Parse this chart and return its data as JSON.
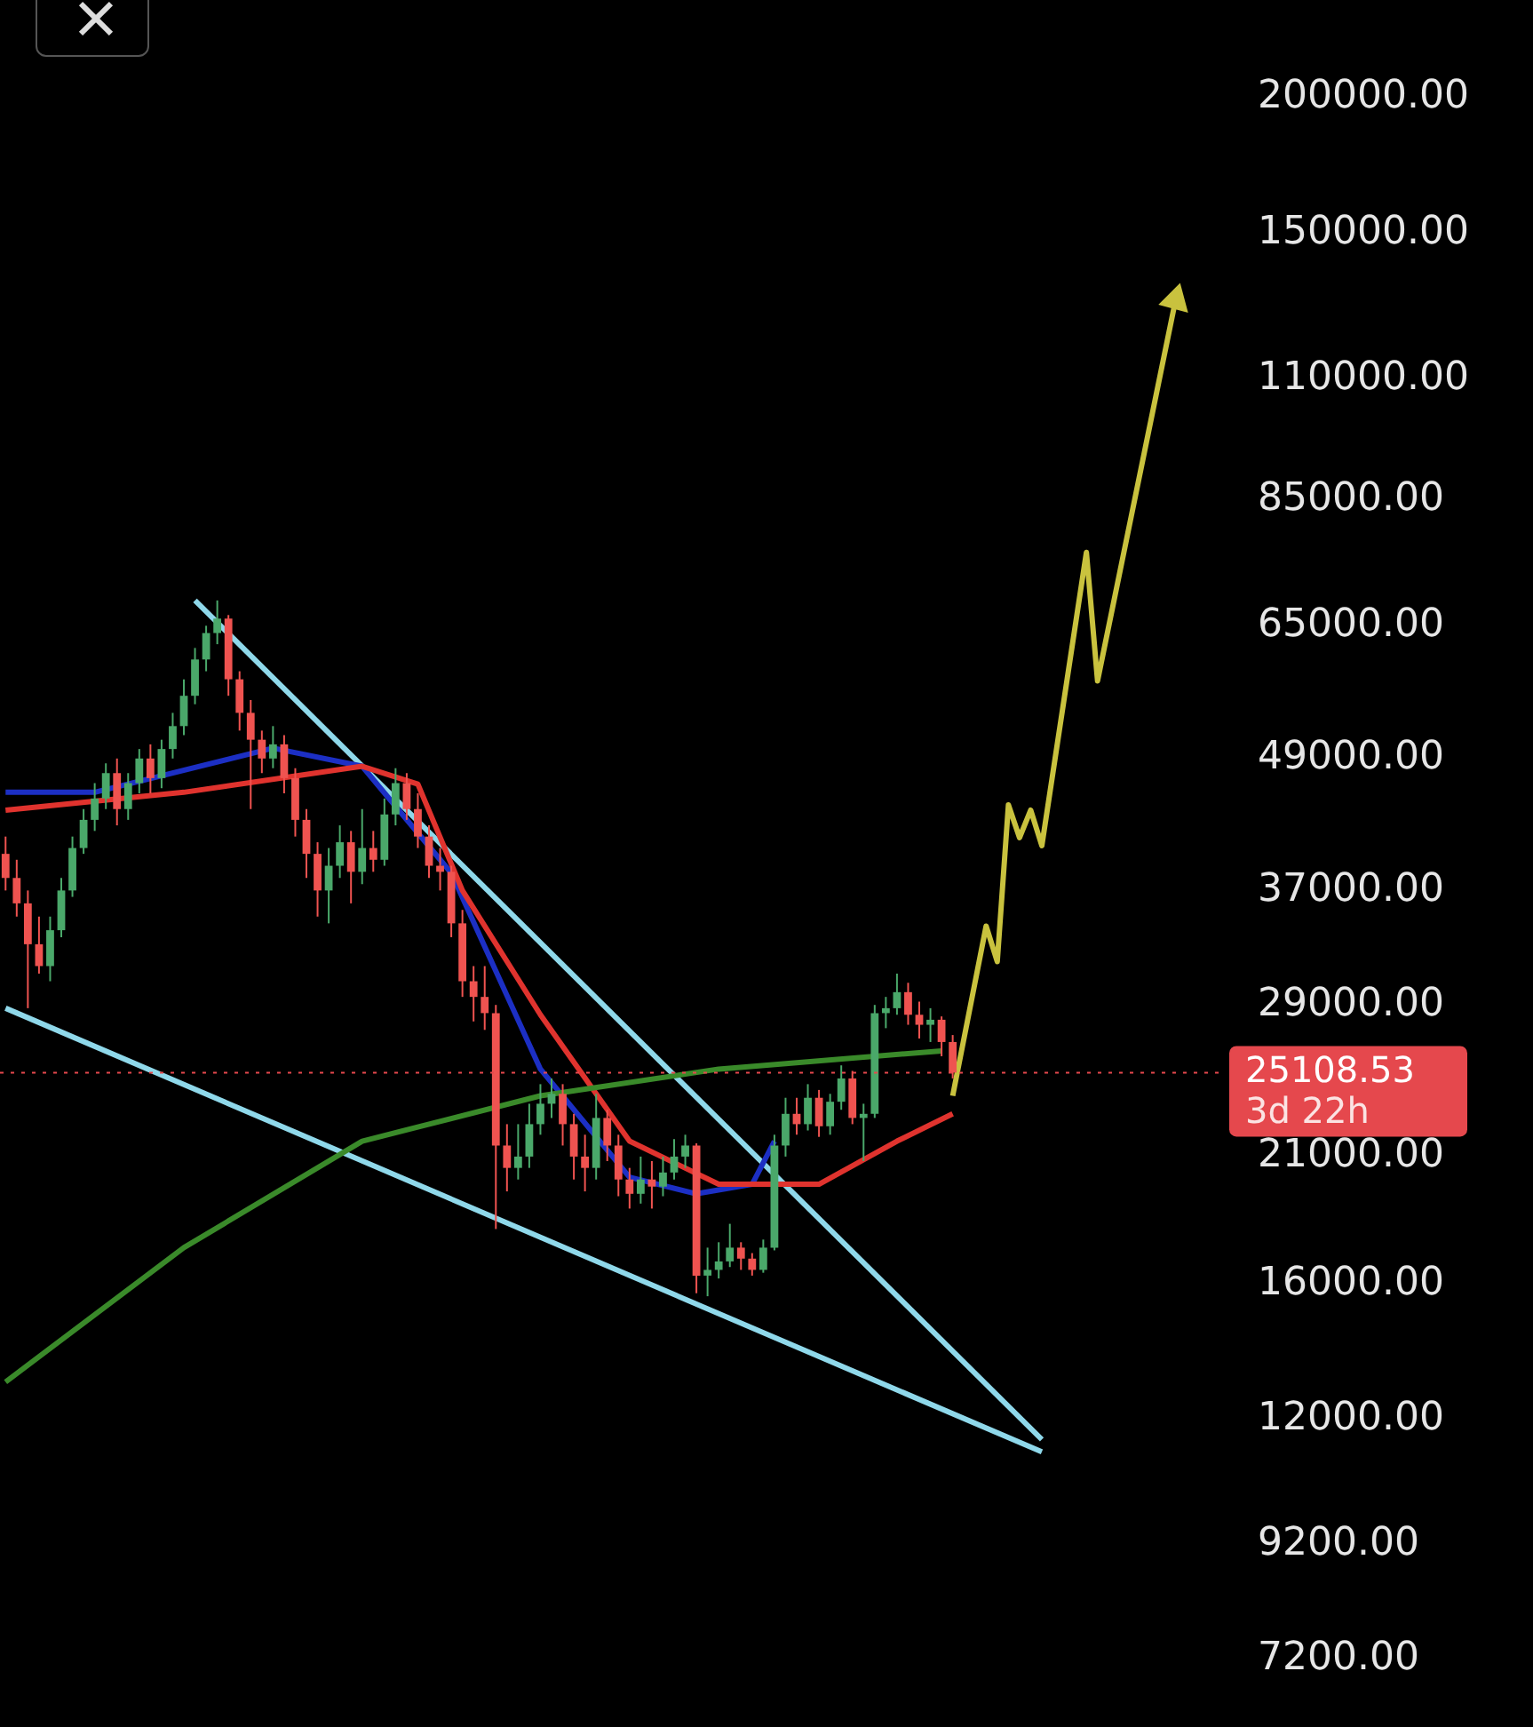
{
  "chart_data": {
    "type": "candlestick",
    "categories": [
      null,
      null,
      null,
      null,
      null,
      null,
      null,
      null,
      null,
      null,
      null,
      null,
      null,
      null,
      null,
      null,
      null,
      null,
      null,
      null,
      null,
      null,
      null,
      null,
      null,
      null,
      null,
      null,
      null,
      null,
      null,
      null,
      null,
      null,
      null,
      null,
      null,
      null,
      null,
      null,
      null,
      null,
      null,
      null,
      null,
      null,
      null,
      null,
      null,
      null,
      null,
      null,
      null,
      null,
      null,
      null,
      null,
      null,
      null,
      null,
      null,
      null,
      null,
      null,
      null,
      null,
      null,
      null,
      null,
      null,
      null,
      null,
      null,
      null,
      null,
      null,
      null,
      null,
      null,
      null,
      null,
      null,
      null,
      null,
      null,
      null,
      null,
      null,
      null,
      null,
      null,
      null,
      null,
      null,
      null,
      null,
      null,
      null,
      null,
      null,
      null,
      null,
      null,
      null,
      null,
      null,
      null,
      null,
      null,
      null
    ],
    "ohlc": [
      [
        40000,
        41500,
        37000,
        38000
      ],
      [
        38000,
        39500,
        35000,
        36000
      ],
      [
        36000,
        37000,
        28800,
        33000
      ],
      [
        33000,
        35000,
        31000,
        31500
      ],
      [
        31500,
        35000,
        30500,
        34000
      ],
      [
        34000,
        38000,
        33500,
        37000
      ],
      [
        37000,
        41500,
        36500,
        40500
      ],
      [
        40500,
        44000,
        40000,
        43000
      ],
      [
        43000,
        46500,
        42000,
        45000
      ],
      [
        45000,
        48500,
        44000,
        47500
      ],
      [
        47500,
        49000,
        42500,
        44000
      ],
      [
        44000,
        47500,
        43000,
        46500
      ],
      [
        46500,
        50000,
        45500,
        49000
      ],
      [
        49000,
        50500,
        45500,
        47000
      ],
      [
        47000,
        51000,
        46000,
        50000
      ],
      [
        50000,
        54000,
        49000,
        52500
      ],
      [
        52500,
        58000,
        51500,
        56000
      ],
      [
        56000,
        62000,
        55000,
        60500
      ],
      [
        60500,
        65000,
        59000,
        64000
      ],
      [
        64000,
        68600,
        62500,
        66000
      ],
      [
        66000,
        66500,
        56000,
        58000
      ],
      [
        58000,
        59000,
        52000,
        54000
      ],
      [
        54000,
        55500,
        44000,
        51000
      ],
      [
        51000,
        52000,
        47500,
        49000
      ],
      [
        49000,
        52500,
        48000,
        50500
      ],
      [
        50500,
        51500,
        45500,
        47000
      ],
      [
        47000,
        48000,
        41500,
        43000
      ],
      [
        43000,
        44000,
        38000,
        40000
      ],
      [
        40000,
        41000,
        35000,
        37000
      ],
      [
        37000,
        40500,
        34500,
        39000
      ],
      [
        39000,
        42500,
        38000,
        41000
      ],
      [
        41000,
        42000,
        36000,
        38500
      ],
      [
        38500,
        44000,
        37500,
        40500
      ],
      [
        40500,
        42000,
        38500,
        39500
      ],
      [
        39500,
        45000,
        39000,
        43500
      ],
      [
        43500,
        48000,
        42500,
        46500
      ],
      [
        46500,
        47500,
        43000,
        44000
      ],
      [
        44000,
        45500,
        40500,
        41500
      ],
      [
        41500,
        42500,
        38000,
        39000
      ],
      [
        39000,
        40500,
        37000,
        38500
      ],
      [
        38500,
        39000,
        33500,
        34500
      ],
      [
        34500,
        35500,
        29500,
        30500
      ],
      [
        30500,
        31500,
        28000,
        29500
      ],
      [
        29500,
        31500,
        27500,
        28500
      ],
      [
        28500,
        29000,
        18000,
        21500
      ],
      [
        21500,
        22500,
        19500,
        20500
      ],
      [
        20500,
        22500,
        20000,
        21000
      ],
      [
        21000,
        23500,
        20500,
        22500
      ],
      [
        22500,
        24500,
        22000,
        23500
      ],
      [
        23500,
        24800,
        22800,
        24000
      ],
      [
        24000,
        24500,
        21500,
        22500
      ],
      [
        22500,
        23000,
        20000,
        21000
      ],
      [
        21000,
        22000,
        19500,
        20500
      ],
      [
        20500,
        24000,
        20000,
        22800
      ],
      [
        22800,
        23200,
        20800,
        21500
      ],
      [
        21500,
        22000,
        19300,
        20000
      ],
      [
        20000,
        20500,
        18800,
        19400
      ],
      [
        19400,
        21000,
        19000,
        20000
      ],
      [
        20000,
        20800,
        18800,
        19700
      ],
      [
        19700,
        21000,
        19300,
        20300
      ],
      [
        20300,
        21800,
        20000,
        21000
      ],
      [
        21000,
        22000,
        20500,
        21500
      ],
      [
        21500,
        21600,
        15700,
        16300
      ],
      [
        16300,
        17300,
        15600,
        16500
      ],
      [
        16500,
        17500,
        16200,
        16800
      ],
      [
        16800,
        18200,
        16600,
        17300
      ],
      [
        17300,
        17500,
        16500,
        16900
      ],
      [
        16900,
        17100,
        16300,
        16500
      ],
      [
        16500,
        17600,
        16400,
        17300
      ],
      [
        17300,
        22000,
        17200,
        21500
      ],
      [
        21500,
        23800,
        21000,
        23000
      ],
      [
        23000,
        23800,
        22000,
        22500
      ],
      [
        22500,
        24500,
        22200,
        23800
      ],
      [
        23800,
        24200,
        21900,
        22400
      ],
      [
        22400,
        24000,
        22000,
        23600
      ],
      [
        23600,
        25500,
        23200,
        24800
      ],
      [
        24800,
        25200,
        22500,
        22800
      ],
      [
        22800,
        23500,
        20800,
        23000
      ],
      [
        23000,
        29000,
        22800,
        28500
      ],
      [
        28500,
        29500,
        27600,
        28800
      ],
      [
        28800,
        31000,
        28400,
        29800
      ],
      [
        29800,
        30400,
        27800,
        28400
      ],
      [
        28400,
        29200,
        27000,
        27800
      ],
      [
        27800,
        28800,
        26800,
        28100
      ],
      [
        28100,
        28300,
        26000,
        26800
      ],
      [
        26800,
        27200,
        24800,
        25108.53
      ],
      null,
      null,
      null,
      null,
      null,
      null,
      null,
      null,
      null,
      null,
      null,
      null,
      null,
      null,
      null,
      null,
      null,
      null,
      null,
      null,
      null,
      null,
      null,
      null
    ],
    "series": [
      {
        "type": "line",
        "color": "#3a8a2a",
        "values": [
          13000,
          null,
          null,
          null,
          null,
          null,
          null,
          null,
          null,
          null,
          null,
          null,
          null,
          null,
          null,
          null,
          17300,
          null,
          null,
          null,
          null,
          null,
          null,
          null,
          null,
          null,
          null,
          null,
          null,
          null,
          null,
          null,
          21700,
          null,
          null,
          null,
          null,
          null,
          null,
          null,
          null,
          null,
          null,
          null,
          null,
          null,
          null,
          null,
          23900,
          null,
          null,
          null,
          null,
          null,
          null,
          null,
          null,
          null,
          null,
          null,
          null,
          null,
          null,
          null,
          25300,
          null,
          null,
          null,
          null,
          null,
          null,
          null,
          null,
          null,
          null,
          null,
          null,
          null,
          null,
          null,
          null,
          null,
          null,
          null,
          26300,
          null,
          null,
          null,
          null,
          null,
          null,
          null,
          null,
          null,
          null,
          null,
          null,
          null,
          null,
          null,
          null,
          null,
          null,
          null,
          null,
          null,
          null,
          null,
          null,
          null
        ]
      },
      {
        "type": "line",
        "color": "#e0332e",
        "values": [
          43900,
          null,
          null,
          null,
          null,
          null,
          null,
          null,
          null,
          null,
          null,
          null,
          null,
          null,
          null,
          null,
          45600,
          null,
          null,
          null,
          null,
          null,
          null,
          null,
          null,
          null,
          null,
          null,
          null,
          null,
          null,
          null,
          48200,
          null,
          null,
          null,
          null,
          46400,
          null,
          null,
          null,
          37000,
          null,
          null,
          null,
          null,
          null,
          null,
          28400,
          null,
          null,
          null,
          null,
          null,
          null,
          null,
          21700,
          null,
          null,
          null,
          null,
          null,
          null,
          null,
          19800,
          null,
          null,
          null,
          null,
          null,
          null,
          null,
          null,
          19800,
          null,
          null,
          null,
          null,
          null,
          null,
          21700,
          null,
          null,
          null,
          null,
          23000,
          null,
          null,
          null,
          null,
          null,
          null,
          null,
          null,
          null,
          null,
          null,
          null,
          null,
          null,
          null,
          null,
          null,
          null,
          null,
          null,
          null,
          null,
          null,
          null
        ]
      },
      {
        "type": "line",
        "color": "#1c2fc4",
        "values": [
          45600,
          null,
          null,
          null,
          null,
          null,
          null,
          null,
          45600,
          null,
          null,
          null,
          null,
          null,
          null,
          null,
          null,
          null,
          null,
          null,
          null,
          null,
          null,
          null,
          50100,
          null,
          null,
          null,
          null,
          null,
          null,
          null,
          48200,
          null,
          null,
          null,
          null,
          null,
          null,
          null,
          38400,
          null,
          null,
          null,
          null,
          null,
          null,
          null,
          25300,
          null,
          null,
          null,
          null,
          null,
          null,
          null,
          20100,
          null,
          null,
          null,
          null,
          null,
          19400,
          null,
          null,
          null,
          null,
          19800,
          null,
          21700,
          null,
          null,
          null,
          null,
          null,
          null,
          null,
          null,
          null,
          null,
          null,
          null,
          null,
          null,
          null,
          null,
          null,
          null,
          null,
          null,
          null,
          null,
          null,
          null,
          null,
          null,
          null,
          null,
          null,
          null,
          null,
          null,
          null,
          null,
          null,
          null,
          null,
          null,
          null,
          null
        ]
      },
      {
        "type": "line",
        "color": "#8fd8ea",
        "values": [
          null,
          null,
          null,
          null,
          null,
          null,
          null,
          null,
          null,
          null,
          null,
          null,
          null,
          null,
          null,
          null,
          null,
          68600,
          null,
          null,
          null,
          null,
          null,
          null,
          null,
          null,
          null,
          null,
          null,
          null,
          null,
          null,
          null,
          null,
          null,
          null,
          null,
          null,
          null,
          null,
          null,
          null,
          null,
          null,
          null,
          null,
          null,
          null,
          null,
          null,
          null,
          null,
          null,
          null,
          null,
          null,
          null,
          null,
          null,
          null,
          null,
          null,
          null,
          null,
          null,
          null,
          null,
          null,
          null,
          null,
          null,
          null,
          null,
          null,
          null,
          null,
          null,
          null,
          null,
          null,
          null,
          null,
          null,
          null,
          null,
          null,
          null,
          null,
          null,
          null,
          null,
          null,
          null,
          11500,
          null,
          null,
          null,
          null,
          null,
          null,
          null,
          null,
          null,
          null,
          null,
          null,
          null,
          null,
          null,
          null
        ]
      },
      {
        "type": "line",
        "color": "#c9c23e",
        "values": [
          null,
          null,
          null,
          null,
          null,
          null,
          null,
          null,
          null,
          null,
          null,
          null,
          null,
          null,
          null,
          null,
          null,
          null,
          null,
          null,
          null,
          null,
          null,
          null,
          null,
          null,
          null,
          null,
          null,
          null,
          null,
          null,
          null,
          null,
          null,
          null,
          null,
          null,
          null,
          null,
          null,
          null,
          null,
          null,
          null,
          null,
          null,
          null,
          null,
          null,
          null,
          null,
          null,
          null,
          null,
          null,
          null,
          null,
          null,
          null,
          null,
          null,
          null,
          null,
          null,
          null,
          null,
          null,
          null,
          null,
          null,
          null,
          null,
          null,
          null,
          null,
          null,
          null,
          null,
          null,
          null,
          null,
          null,
          null,
          null,
          23900,
          null,
          null,
          34300,
          31800,
          44400,
          41400,
          43900,
          40700,
          null,
          null,
          null,
          76000,
          57800,
          null,
          null,
          null,
          null,
          null,
          null,
          130000,
          null,
          null,
          null,
          null
        ]
      },
      {
        "type": "line",
        "color": "#8fd8ea",
        "values": [
          28800,
          null,
          null,
          null,
          null,
          null,
          null,
          null,
          null,
          null,
          null,
          null,
          null,
          null,
          null,
          null,
          null,
          null,
          null,
          null,
          null,
          null,
          null,
          null,
          null,
          null,
          null,
          null,
          null,
          null,
          null,
          null,
          null,
          null,
          null,
          null,
          null,
          null,
          null,
          null,
          null,
          null,
          null,
          null,
          null,
          null,
          null,
          null,
          null,
          null,
          null,
          null,
          null,
          null,
          null,
          null,
          null,
          null,
          null,
          null,
          null,
          null,
          null,
          null,
          null,
          null,
          null,
          null,
          null,
          null,
          null,
          null,
          null,
          null,
          null,
          null,
          null,
          null,
          null,
          null,
          null,
          null,
          null,
          null,
          null,
          null,
          null,
          null,
          null,
          null,
          null,
          null,
          null,
          11200,
          null,
          null,
          null,
          null,
          null,
          null,
          null,
          null,
          null,
          null,
          null,
          null,
          null,
          null,
          null,
          null
        ]
      }
    ],
    "log": true,
    "ylim": [
      7200,
      200000
    ],
    "yticks": [
      {
        "value": 200000,
        "label": "200000.00"
      },
      {
        "value": 150000,
        "label": "150000.00"
      },
      {
        "value": 110000,
        "label": "110000.00"
      },
      {
        "value": 85000,
        "label": "85000.00"
      },
      {
        "value": 65000,
        "label": "65000.00"
      },
      {
        "value": 49000,
        "label": "49000.00"
      },
      {
        "value": 37000,
        "label": "37000.00"
      },
      {
        "value": 29000,
        "label": "29000.00"
      },
      {
        "value": 21000,
        "label": "21000.00"
      },
      {
        "value": 16000,
        "label": "16000.00"
      },
      {
        "value": 12000,
        "label": "12000.00"
      },
      {
        "value": 9200,
        "label": "9200.00"
      },
      {
        "value": 7200,
        "label": "7200.00"
      }
    ],
    "ref_lines": [
      {
        "axis": "y",
        "value": 25108.53,
        "label": "25108.53",
        "color": "#e5484d",
        "line_style": "dotted"
      }
    ],
    "annotations": [
      "3d 22h"
    ],
    "tick_labels": "y",
    "legend": false
  }
}
